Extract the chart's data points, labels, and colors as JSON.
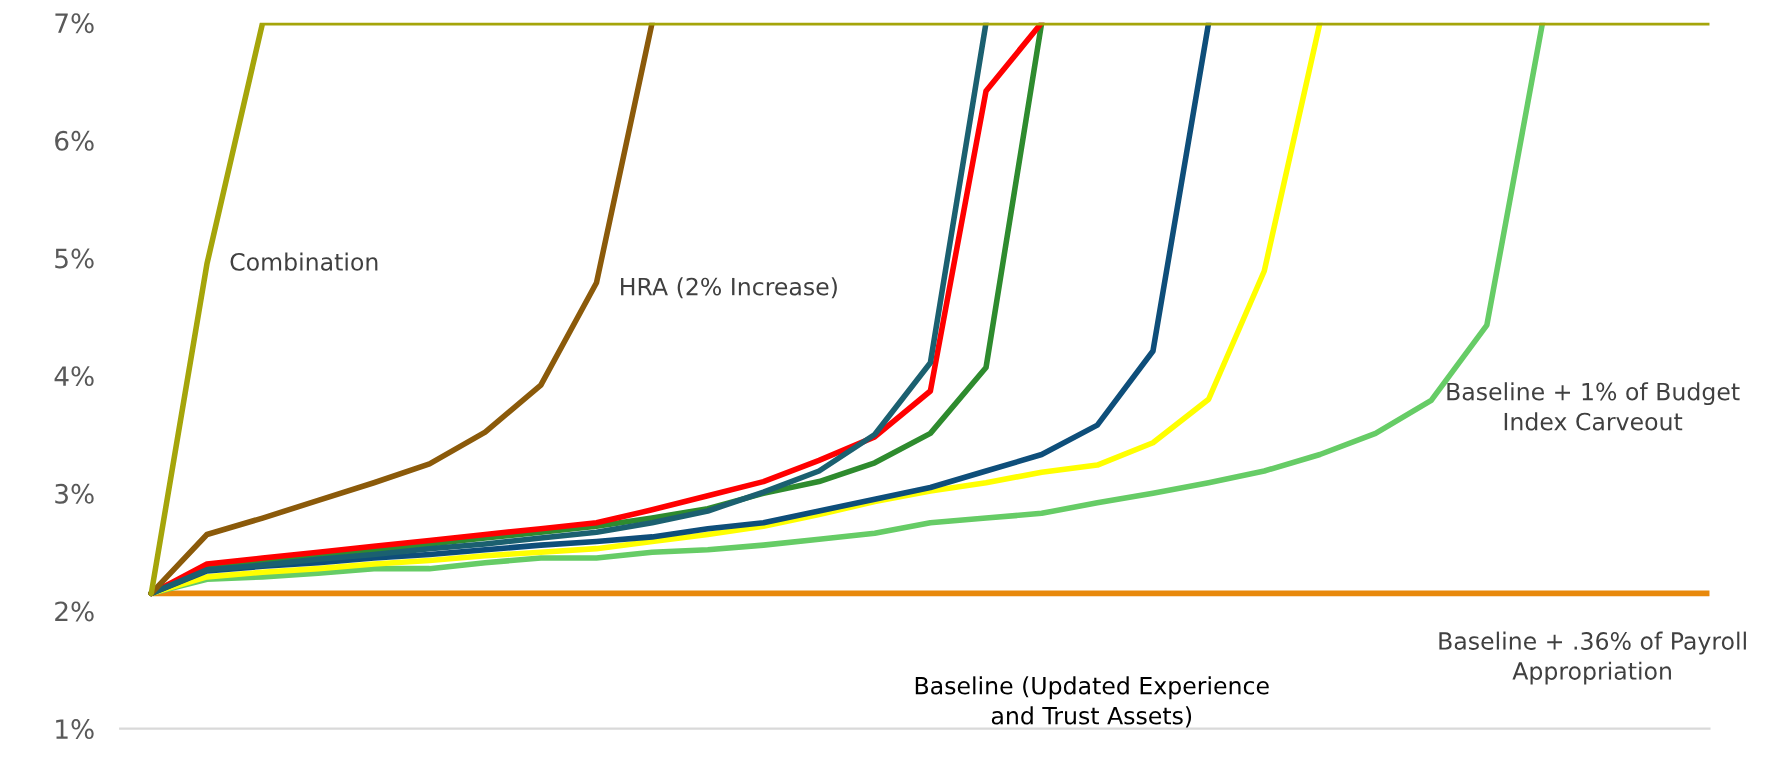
{
  "chart_data": {
    "type": "line",
    "categories": [
      null,
      null,
      null,
      null,
      null,
      null,
      null,
      null,
      null,
      null,
      null,
      null,
      null,
      null,
      null,
      null,
      null,
      null,
      null,
      null,
      null,
      null,
      null,
      null,
      null,
      null,
      null,
      null,
      null
    ],
    "series": [
      {
        "color": "#e8890c",
        "values": [
          2.15,
          2.15,
          2.15,
          2.15,
          2.15,
          2.15,
          2.15,
          2.15,
          2.15,
          2.15,
          2.15,
          2.15,
          2.15,
          2.15,
          2.15,
          2.15,
          2.15,
          2.15,
          2.15,
          2.15,
          2.15,
          2.15,
          2.15,
          2.15,
          2.15,
          2.15,
          2.15,
          2.15,
          2.15
        ]
      },
      {
        "color": "#66cc66",
        "values": [
          2.15,
          2.27,
          2.29,
          2.32,
          2.36,
          2.36,
          2.41,
          2.45,
          2.45,
          2.5,
          2.52,
          2.56,
          2.61,
          2.66,
          2.75,
          2.79,
          2.83,
          2.92,
          3.0,
          3.09,
          3.19,
          3.33,
          3.51,
          3.79,
          4.43,
          7,
          null,
          null,
          null
        ]
      },
      {
        "color": "#ffff00",
        "values": [
          2.15,
          2.29,
          2.33,
          2.36,
          2.4,
          2.43,
          2.47,
          2.5,
          2.53,
          2.59,
          2.65,
          2.72,
          2.82,
          2.93,
          3.02,
          3.09,
          3.18,
          3.24,
          3.43,
          3.8,
          4.89,
          7,
          null,
          null,
          null,
          null,
          null,
          null,
          null
        ]
      },
      {
        "color": "#0e4e7a",
        "values": [
          2.15,
          2.34,
          2.38,
          2.41,
          2.45,
          2.48,
          2.52,
          2.56,
          2.59,
          2.63,
          2.7,
          2.75,
          2.85,
          2.95,
          3.05,
          3.19,
          3.33,
          3.58,
          4.21,
          7,
          null,
          null,
          null,
          null,
          null,
          null,
          null,
          null,
          null
        ]
      },
      {
        "color": "#2e8b2e",
        "values": [
          2.15,
          2.38,
          2.43,
          2.48,
          2.52,
          2.57,
          2.62,
          2.67,
          2.72,
          2.79,
          2.87,
          3.0,
          3.1,
          3.26,
          3.51,
          4.07,
          7,
          null,
          null,
          null,
          null,
          null,
          null,
          null,
          null,
          null,
          null,
          null,
          null
        ]
      },
      {
        "color": "#ff0000",
        "values": [
          2.15,
          2.4,
          2.45,
          2.5,
          2.55,
          2.6,
          2.65,
          2.7,
          2.75,
          2.86,
          2.98,
          3.1,
          3.28,
          3.48,
          3.87,
          6.42,
          7,
          null,
          null,
          null,
          null,
          null,
          null,
          null,
          null,
          null,
          null,
          null,
          null
        ]
      },
      {
        "color": "#1b6070",
        "values": [
          2.15,
          2.35,
          2.39,
          2.44,
          2.48,
          2.53,
          2.57,
          2.62,
          2.67,
          2.75,
          2.85,
          3.01,
          3.19,
          3.5,
          4.11,
          7,
          null,
          null,
          null,
          null,
          null,
          null,
          null,
          null,
          null,
          null,
          null,
          null,
          null
        ]
      },
      {
        "color": "#8b5a0a",
        "values": [
          2.15,
          2.65,
          2.79,
          2.94,
          3.09,
          3.25,
          3.52,
          3.92,
          4.79,
          7,
          null,
          null,
          null,
          null,
          null,
          null,
          null,
          null,
          null,
          null,
          null,
          null,
          null,
          null,
          null,
          null,
          null,
          null,
          null
        ]
      },
      {
        "color": "#a5a50a",
        "values": [
          2.15,
          4.95,
          7,
          7,
          7,
          7,
          7,
          7,
          7,
          7,
          7,
          7,
          7,
          7,
          7,
          7,
          7,
          7,
          7,
          7,
          7,
          7,
          7,
          7,
          7,
          7,
          7,
          7,
          7
        ]
      }
    ],
    "annotations": [
      "Combination",
      "HRA (2% Increase)",
      "Baseline + 1% of Budget\nIndex Carveout",
      "Baseline + .36% of Payroll\nAppropriation",
      "Baseline (Updated Experience\nand Trust Assets)"
    ],
    "ylim": [
      1,
      7
    ],
    "yticks": [
      {
        "value": 1,
        "label": "1%"
      },
      {
        "value": 2,
        "label": "2%"
      },
      {
        "value": 3,
        "label": "3%"
      },
      {
        "value": 4,
        "label": "4%"
      },
      {
        "value": 5,
        "label": "5%"
      },
      {
        "value": 6,
        "label": "6%"
      },
      {
        "value": 7,
        "label": "7%"
      }
    ],
    "tick_labels": "y",
    "grid": false,
    "marker": "none",
    "line_style": "solid"
  }
}
